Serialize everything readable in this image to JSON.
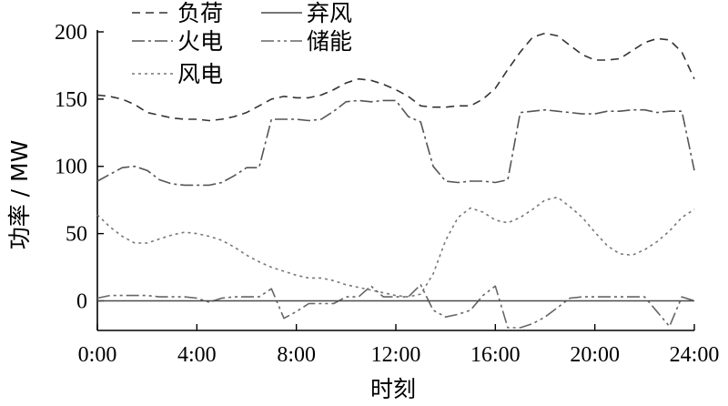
{
  "chart_data": {
    "type": "line",
    "xlabel": "时刻",
    "ylabel": "功率 / MW",
    "x_ticks": [
      "0:00",
      "4:00",
      "8:00",
      "12:00",
      "16:00",
      "20:00",
      "24:00"
    ],
    "y_ticks": [
      "0",
      "50",
      "100",
      "150",
      "200"
    ],
    "xlim": [
      0,
      24
    ],
    "ylim": [
      -22,
      200
    ],
    "grid": false,
    "legend_position": "top-left",
    "x": [
      0,
      0.5,
      1,
      1.5,
      2,
      2.5,
      3,
      3.5,
      4,
      4.5,
      5,
      5.5,
      6,
      6.5,
      7,
      7.5,
      8,
      8.5,
      9,
      9.5,
      10,
      10.5,
      11,
      11.5,
      12,
      12.5,
      13,
      13.5,
      14,
      14.5,
      15,
      15.5,
      16,
      16.5,
      17,
      17.5,
      18,
      18.5,
      19,
      19.5,
      20,
      20.5,
      21,
      21.5,
      22,
      22.5,
      23,
      23.5,
      24
    ],
    "series": [
      {
        "name": "负荷",
        "color": "#333333",
        "dash": "9,6",
        "values": [
          153,
          152,
          150,
          146,
          140,
          138,
          136,
          135,
          135,
          134,
          135,
          137,
          140,
          145,
          150,
          152,
          151,
          151,
          153,
          157,
          162,
          165,
          164,
          161,
          157,
          152,
          145,
          144,
          144,
          145,
          145,
          150,
          158,
          172,
          185,
          196,
          199,
          197,
          190,
          183,
          179,
          179,
          180,
          186,
          192,
          195,
          194,
          185,
          165
        ]
      },
      {
        "name": "弃风",
        "color": "#4a4a4a",
        "dash": "",
        "values": [
          0,
          0,
          0,
          0,
          0,
          0,
          0,
          0,
          0,
          0,
          0,
          0,
          0,
          0,
          0,
          0,
          0,
          0,
          0,
          0,
          0,
          0,
          0,
          0,
          0,
          0,
          0,
          0,
          0,
          0,
          0,
          0,
          0,
          0,
          0,
          0,
          0,
          0,
          0,
          0,
          0,
          0,
          0,
          0,
          0,
          0,
          0,
          0,
          0
        ]
      },
      {
        "name": "火电",
        "color": "#555555",
        "dash": "14,4,3,4",
        "values": [
          89,
          94,
          99,
          100,
          97,
          90,
          87,
          86,
          86,
          86,
          88,
          93,
          99,
          99,
          135,
          135,
          135,
          134,
          135,
          141,
          148,
          149,
          148,
          149,
          149,
          137,
          133,
          100,
          89,
          88,
          89,
          89,
          88,
          90,
          140,
          141,
          142,
          141,
          140,
          139,
          139,
          141,
          141,
          142,
          142,
          140,
          141,
          141,
          97
        ]
      },
      {
        "name": "储能",
        "color": "#666666",
        "dash": "14,4,3,4,3,4",
        "values": [
          2,
          4,
          4,
          4,
          4,
          3,
          3,
          3,
          2,
          -1,
          2,
          3,
          3,
          3,
          9,
          -13,
          -8,
          -2,
          -2,
          -2,
          3,
          3,
          11,
          3,
          3,
          3,
          12,
          -7,
          -12,
          -10,
          -7,
          4,
          11,
          -20,
          -20,
          -17,
          -12,
          -5,
          2,
          3,
          3,
          3,
          3,
          3,
          3,
          -8,
          -19,
          3,
          0
        ]
      },
      {
        "name": "风电",
        "color": "#777777",
        "dash": "3,4",
        "values": [
          64,
          55,
          48,
          43,
          43,
          46,
          49,
          51,
          50,
          48,
          45,
          40,
          34,
          29,
          25,
          22,
          19,
          17,
          17,
          15,
          12,
          10,
          8,
          6,
          4,
          3,
          5,
          20,
          45,
          62,
          69,
          66,
          60,
          58,
          62,
          68,
          75,
          77,
          70,
          62,
          51,
          41,
          35,
          34,
          38,
          44,
          52,
          62,
          68
        ]
      }
    ]
  }
}
